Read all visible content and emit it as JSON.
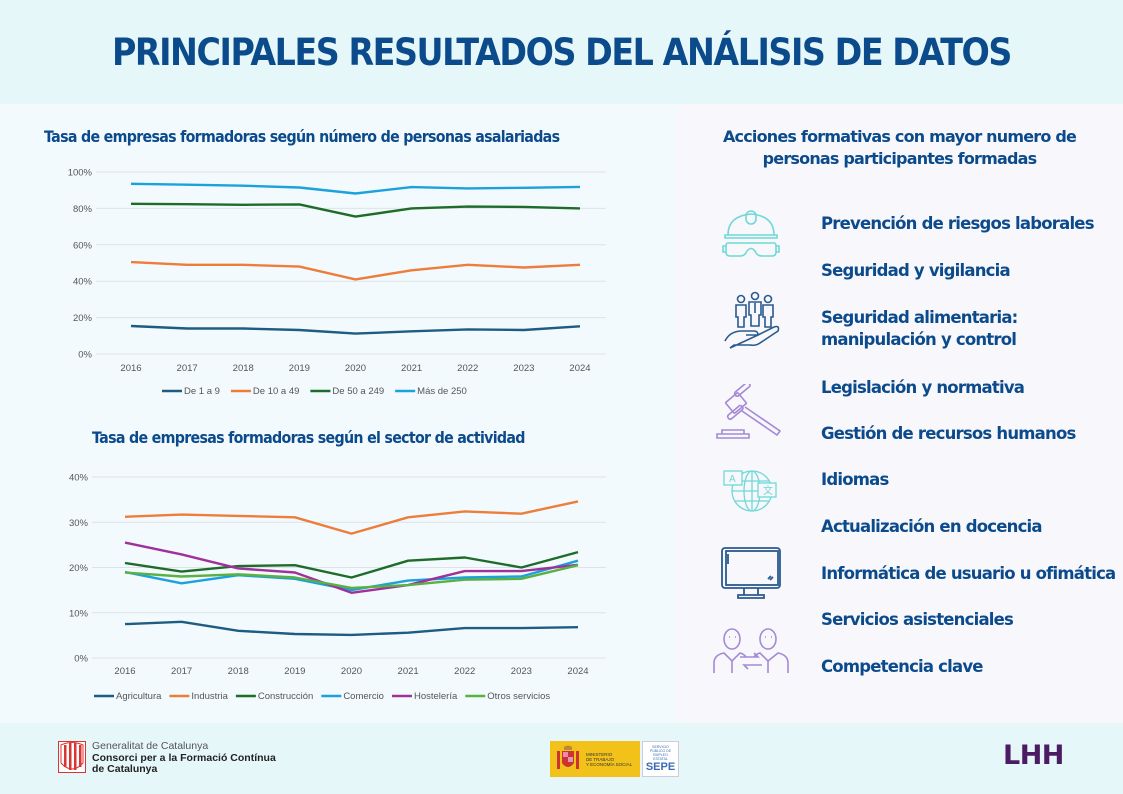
{
  "header": {
    "title": "PRINCIPALES RESULTADOS DEL ANÁLISIS DE DATOS"
  },
  "colors": {
    "title_blue": "#0b4a8b",
    "icon_teal": "#6fd9d6",
    "icon_blue": "#2a5a8f",
    "icon_purple": "#a48ad6",
    "lhh_purple": "#4b1c63"
  },
  "chart_data": [
    {
      "type": "line",
      "title": "Tasa de empresas formadoras según número de personas asalariadas",
      "xlabel": "",
      "ylabel": "",
      "ylim": [
        0,
        100
      ],
      "yticks": [
        "0%",
        "20%",
        "40%",
        "60%",
        "80%",
        "100%"
      ],
      "ytick_values": [
        0,
        20,
        40,
        60,
        80,
        100
      ],
      "grid": true,
      "legend": "bottom",
      "categories": [
        "2016",
        "2017",
        "2018",
        "2019",
        "2020",
        "2021",
        "2022",
        "2023",
        "2024"
      ],
      "series": [
        {
          "name": "De 1 a 9",
          "color": "#1f5c82",
          "values": [
            15.4,
            14.0,
            14.0,
            13.2,
            11.2,
            12.5,
            13.5,
            13.2,
            15.2
          ]
        },
        {
          "name": "De 10 a 49",
          "color": "#ed7d3a",
          "values": [
            50.5,
            49.0,
            49.0,
            48.0,
            41.0,
            46.0,
            49.0,
            47.5,
            49.0
          ]
        },
        {
          "name": "De 50 a 249",
          "color": "#1e6b2a",
          "values": [
            82.5,
            82.3,
            82.0,
            82.2,
            75.5,
            80.0,
            81.0,
            80.8,
            80.0
          ]
        },
        {
          "name": "Más de 250",
          "color": "#1ba1dc",
          "values": [
            93.5,
            93.0,
            92.5,
            91.5,
            88.2,
            91.7,
            91.0,
            91.3,
            91.8
          ]
        }
      ]
    },
    {
      "type": "line",
      "title": "Tasa de empresas formadoras según el sector de actividad",
      "xlabel": "",
      "ylabel": "",
      "ylim": [
        0,
        40
      ],
      "yticks": [
        "0%",
        "10%",
        "20%",
        "30%",
        "40%"
      ],
      "ytick_values": [
        0,
        10,
        20,
        30,
        40
      ],
      "grid": true,
      "legend": "bottom",
      "categories": [
        "2016",
        "2017",
        "2018",
        "2019",
        "2020",
        "2021",
        "2022",
        "2023",
        "2024"
      ],
      "series": [
        {
          "name": "Agricultura",
          "color": "#1f5c82",
          "values": [
            7.5,
            8.0,
            6.0,
            5.3,
            5.1,
            5.6,
            6.6,
            6.6,
            6.8
          ]
        },
        {
          "name": "Industria",
          "color": "#ed7d3a",
          "values": [
            31.2,
            31.7,
            31.4,
            31.1,
            27.5,
            31.1,
            32.4,
            31.9,
            34.6
          ]
        },
        {
          "name": "Construcción",
          "color": "#1e6b2a",
          "values": [
            21.0,
            19.1,
            20.3,
            20.5,
            17.8,
            21.5,
            22.2,
            20.0,
            23.4
          ]
        },
        {
          "name": "Comercio",
          "color": "#1ba1dc",
          "values": [
            19.0,
            16.5,
            18.3,
            17.5,
            15.0,
            17.1,
            17.8,
            18.0,
            21.5
          ]
        },
        {
          "name": "Hostelería",
          "color": "#a0309a",
          "values": [
            25.5,
            22.9,
            19.8,
            18.9,
            14.4,
            16.1,
            19.2,
            19.2,
            20.6
          ]
        },
        {
          "name": "Otros servicios",
          "color": "#5bb043",
          "values": [
            18.9,
            18.0,
            18.5,
            17.8,
            15.5,
            16.1,
            17.3,
            17.5,
            20.5
          ]
        }
      ]
    }
  ],
  "actions": {
    "title_line1": "Acciones formativas con mayor numero de",
    "title_line2": "personas participantes formadas",
    "items": [
      {
        "label": "Prevención de riesgos laborales"
      },
      {
        "label": "Seguridad y vigilancia"
      },
      {
        "label": "Seguridad alimentaria:",
        "label2": "manipulación  y control"
      },
      {
        "label": "Legislación y normativa"
      },
      {
        "label": "Gestión de recursos humanos"
      },
      {
        "label": "Idiomas"
      },
      {
        "label": "Actualización en docencia"
      },
      {
        "label": "Informática de usuario u ofimática"
      },
      {
        "label": "Servicios asistenciales"
      },
      {
        "label": "Competencia clave"
      }
    ],
    "icons": [
      "hard-hat-goggles-icon",
      "people-in-hand-icon",
      "gavel-icon",
      "translation-globe-icon",
      "monitor-icon",
      "people-exchange-icon"
    ]
  },
  "footer": {
    "generalitat": {
      "line1": "Generalitat de Catalunya",
      "line2": "Consorci per a la Formació Contínua",
      "line3": "de Catalunya"
    },
    "ministerio": {
      "line1": "MINISTERIO",
      "line2": "DE TRABAJO",
      "line3": "Y ECONOMÍA SOCIAL"
    },
    "sepe": {
      "small": "SERVICIO PÚBLICO DE EMPLEO ESTATAL",
      "big": "SEPE"
    },
    "lhh": "LHH"
  }
}
